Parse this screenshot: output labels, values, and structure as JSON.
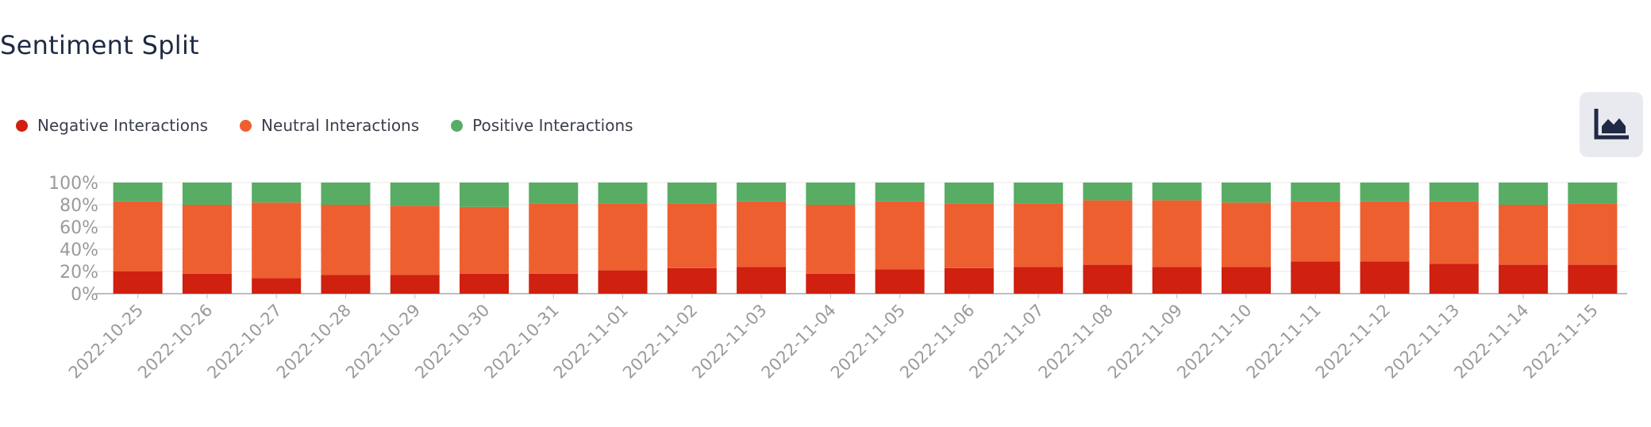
{
  "title": "Sentiment Split",
  "legend": {
    "negative": "Negative Interactions",
    "neutral": "Neutral Interactions",
    "positive": "Positive Interactions"
  },
  "toolbar": {
    "chart_type_icon": "area-chart-icon"
  },
  "colors": {
    "negative": "#cf2010",
    "neutral": "#ee5f30",
    "positive": "#58ac64"
  },
  "chart_data": {
    "type": "bar",
    "stacked": true,
    "normalized": true,
    "categories": [
      "2022-10-25",
      "2022-10-26",
      "2022-10-27",
      "2022-10-28",
      "2022-10-29",
      "2022-10-30",
      "2022-10-31",
      "2022-11-01",
      "2022-11-02",
      "2022-11-03",
      "2022-11-04",
      "2022-11-05",
      "2022-11-06",
      "2022-11-07",
      "2022-11-08",
      "2022-11-09",
      "2022-11-10",
      "2022-11-11",
      "2022-11-12",
      "2022-11-13",
      "2022-11-14",
      "2022-11-15"
    ],
    "series": [
      {
        "name": "Negative Interactions",
        "values": [
          20,
          18,
          14,
          17,
          17,
          18,
          18,
          21,
          23,
          24,
          18,
          22,
          23,
          24,
          26,
          24,
          24,
          29,
          29,
          27,
          26,
          26
        ]
      },
      {
        "name": "Neutral Interactions",
        "values": [
          63,
          62,
          68,
          63,
          62,
          60,
          63,
          60,
          58,
          59,
          62,
          61,
          58,
          57,
          58,
          60,
          58,
          54,
          54,
          56,
          54,
          55
        ]
      },
      {
        "name": "Positive Interactions",
        "values": [
          17,
          20,
          18,
          20,
          21,
          22,
          19,
          19,
          19,
          17,
          20,
          17,
          19,
          19,
          16,
          16,
          18,
          17,
          17,
          17,
          20,
          19
        ]
      }
    ],
    "yticks": [
      "0%",
      "20%",
      "40%",
      "60%",
      "80%",
      "100%"
    ],
    "ylim": [
      0,
      100
    ],
    "grid": true,
    "legend_position": "top-left"
  }
}
